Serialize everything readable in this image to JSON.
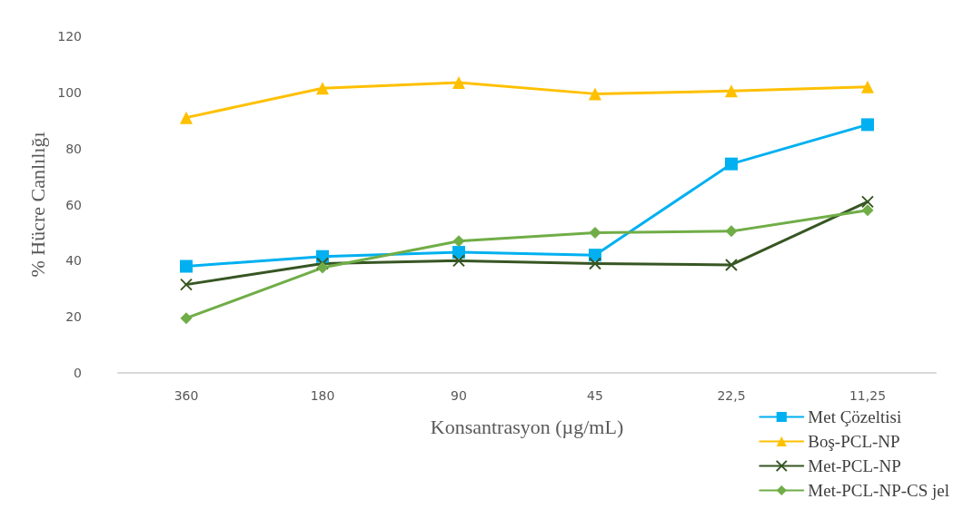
{
  "chart_data": {
    "type": "line",
    "xlabel": "Konsantrasyon (µg/mL)",
    "ylabel": "% Hücre Canlılığı",
    "categories": [
      "360",
      "180",
      "90",
      "45",
      "22,5",
      "11,25"
    ],
    "ylim": [
      0,
      120
    ],
    "yticks": [
      0,
      20,
      40,
      60,
      80,
      100,
      120
    ],
    "grid": false,
    "legend": "bottom right",
    "line_style": "solid",
    "series": [
      {
        "name": "Met Çözeltisi",
        "color": "#00b0f0",
        "marker": "square",
        "values": [
          38,
          41.5,
          43,
          42,
          74.5,
          88.5
        ]
      },
      {
        "name": "Boş-PCL-NP",
        "color": "#ffc000",
        "marker": "triangle",
        "values": [
          91,
          101.5,
          103.5,
          99.5,
          100.5,
          102
        ]
      },
      {
        "name": "Met-PCL-NP",
        "color": "#375623",
        "marker": "cross",
        "values": [
          31.5,
          39,
          40,
          39,
          38.5,
          61
        ]
      },
      {
        "name": "Met-PCL-NP-CS jel",
        "color": "#70ad47",
        "marker": "diamond",
        "values": [
          19.5,
          37.5,
          47,
          50,
          50.5,
          58
        ]
      }
    ]
  }
}
